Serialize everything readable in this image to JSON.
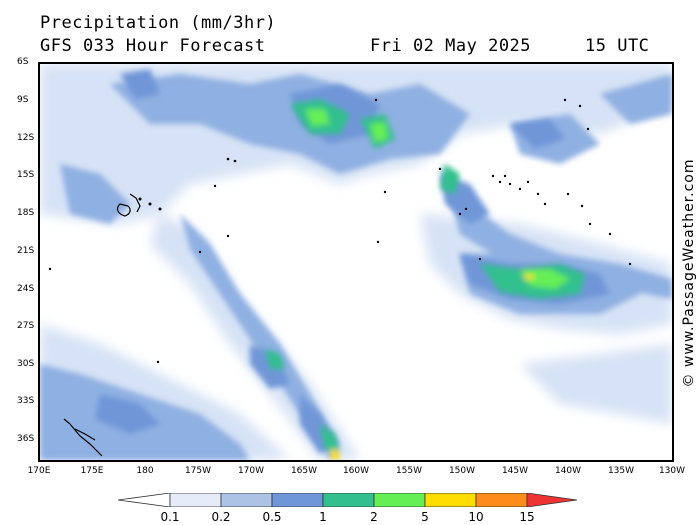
{
  "header": {
    "title": "Precipitation (mm/3hr)",
    "subtitle": "GFS 033 Hour Forecast",
    "date": "Fri 02 May 2025",
    "time": "15 UTC"
  },
  "watermark": "© www.PassageWeather.com",
  "axes": {
    "lat_labels": [
      "6S",
      "9S",
      "12S",
      "15S",
      "18S",
      "21S",
      "24S",
      "27S",
      "30S",
      "33S",
      "36S"
    ],
    "lon_labels": [
      "170E",
      "175E",
      "180",
      "175W",
      "170W",
      "165W",
      "160W",
      "155W",
      "150W",
      "145W",
      "140W",
      "135W",
      "130W"
    ]
  },
  "legend": {
    "labels": [
      "0.1",
      "0.2",
      "0.5",
      "1",
      "2",
      "5",
      "10",
      "15"
    ],
    "colors": [
      "#e6ecf7",
      "#adc3e6",
      "#6f96d8",
      "#33c08e",
      "#66ee55",
      "#ffdd00",
      "#ff8c1a",
      "#ee3333"
    ]
  },
  "map": {
    "region": "South Pacific",
    "lat_range": [
      "6S",
      "38S"
    ],
    "lon_range": [
      "170E",
      "130W"
    ],
    "field": "precipitation"
  }
}
